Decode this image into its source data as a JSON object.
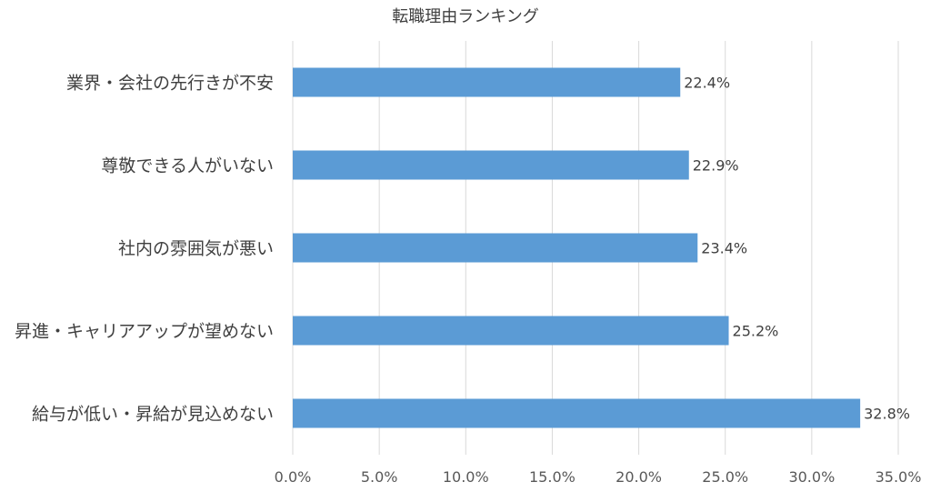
{
  "chart_data": {
    "type": "bar",
    "orientation": "horizontal",
    "title": "転職理由ランキング",
    "categories": [
      "業界・会社の先行きが不安",
      "尊敬できる人がいない",
      "社内の雰囲気が悪い",
      "昇進・キャリアアップが望めない",
      "給与が低い・昇給が見込めない"
    ],
    "values": [
      22.4,
      22.9,
      23.4,
      25.2,
      32.8
    ],
    "value_labels": [
      "22.4%",
      "22.9%",
      "23.4%",
      "25.2%",
      "32.8%"
    ],
    "x_ticks": [
      "0.0%",
      "5.0%",
      "10.0%",
      "15.0%",
      "20.0%",
      "25.0%",
      "30.0%",
      "35.0%"
    ],
    "xlim": [
      0,
      35
    ],
    "xlabel": "",
    "ylabel": "",
    "grid": "vertical",
    "legend": "none",
    "bar_color": "#5b9bd5"
  }
}
